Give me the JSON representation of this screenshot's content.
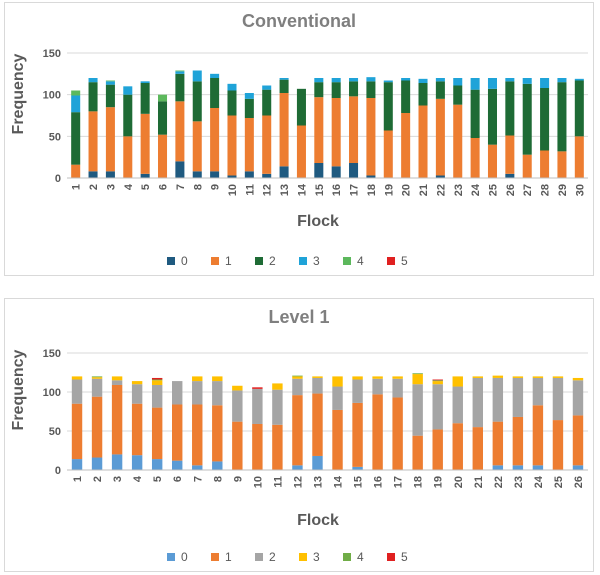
{
  "chart_data": [
    {
      "type": "bar",
      "stacked": true,
      "title": "Conventional",
      "xlabel": "Flock",
      "ylabel": "Frequency",
      "ylim": [
        0,
        150
      ],
      "yticks": [
        0,
        50,
        100,
        150
      ],
      "grid": true,
      "legend_position": "bottom",
      "categories": [
        "1",
        "2",
        "3",
        "4",
        "5",
        "6",
        "7",
        "8",
        "9",
        "10",
        "11",
        "12",
        "13",
        "14",
        "15",
        "16",
        "17",
        "18",
        "19",
        "20",
        "21",
        "22",
        "23",
        "24",
        "25",
        "26",
        "27",
        "28",
        "29",
        "30"
      ],
      "series": [
        {
          "name": "0",
          "color": "#1f5a80",
          "values": [
            0,
            8,
            8,
            0,
            5,
            0,
            20,
            8,
            8,
            3,
            8,
            5,
            14,
            0,
            18,
            14,
            18,
            3,
            0,
            0,
            0,
            3,
            0,
            0,
            0,
            5,
            0,
            0,
            0,
            0
          ]
        },
        {
          "name": "1",
          "color": "#ed7d31",
          "values": [
            16,
            72,
            77,
            50,
            72,
            52,
            72,
            60,
            76,
            72,
            64,
            70,
            88,
            63,
            79,
            82,
            80,
            93,
            57,
            78,
            87,
            92,
            88,
            48,
            40,
            46,
            28,
            33,
            32,
            50
          ]
        },
        {
          "name": "2",
          "color": "#1e6b35",
          "values": [
            63,
            35,
            27,
            50,
            37,
            40,
            33,
            48,
            36,
            30,
            23,
            31,
            16,
            44,
            18,
            19,
            18,
            20,
            58,
            39,
            27,
            21,
            23,
            58,
            67,
            65,
            85,
            75,
            83,
            67
          ]
        },
        {
          "name": "3",
          "color": "#1fa3d8",
          "values": [
            20,
            5,
            4,
            10,
            2,
            0,
            3,
            13,
            5,
            8,
            7,
            5,
            2,
            0,
            5,
            5,
            4,
            5,
            2,
            3,
            5,
            4,
            9,
            14,
            13,
            4,
            7,
            12,
            5,
            2
          ]
        },
        {
          "name": "4",
          "color": "#5cb85c",
          "values": [
            6,
            0,
            1,
            0,
            0,
            8,
            1,
            0,
            0,
            0,
            0,
            0,
            0,
            0,
            0,
            0,
            0,
            0,
            0,
            0,
            0,
            0,
            0,
            0,
            0,
            0,
            0,
            0,
            0,
            0
          ]
        },
        {
          "name": "5",
          "color": "#e02020",
          "values": [
            0,
            0,
            0,
            0,
            0,
            0,
            0,
            0,
            0,
            0,
            0,
            0,
            0,
            0,
            0,
            0,
            0,
            0,
            0,
            0,
            0,
            0,
            0,
            0,
            0,
            0,
            0,
            0,
            0,
            0
          ]
        }
      ]
    },
    {
      "type": "bar",
      "stacked": true,
      "title": "Level 1",
      "xlabel": "Flock",
      "ylabel": "Frequency",
      "ylim": [
        0,
        150
      ],
      "yticks": [
        0,
        50,
        100,
        150
      ],
      "grid": true,
      "legend_position": "bottom",
      "categories": [
        "1",
        "2",
        "3",
        "4",
        "5",
        "6",
        "7",
        "8",
        "9",
        "10",
        "11",
        "12",
        "13",
        "14",
        "15",
        "16",
        "17",
        "18",
        "19",
        "20",
        "21",
        "22",
        "23",
        "24",
        "25",
        "26"
      ],
      "series": [
        {
          "name": "0",
          "color": "#5b9bd5",
          "values": [
            14,
            16,
            20,
            19,
            14,
            12,
            6,
            11,
            0,
            0,
            0,
            6,
            18,
            0,
            4,
            0,
            0,
            0,
            0,
            0,
            0,
            6,
            6,
            6,
            0,
            6
          ]
        },
        {
          "name": "1",
          "color": "#ed7d31",
          "values": [
            71,
            78,
            89,
            66,
            66,
            72,
            78,
            72,
            62,
            59,
            58,
            90,
            80,
            77,
            82,
            97,
            93,
            44,
            52,
            60,
            55,
            56,
            62,
            77,
            64,
            64
          ]
        },
        {
          "name": "2",
          "color": "#a5a5a5",
          "values": [
            31,
            23,
            6,
            25,
            29,
            30,
            30,
            31,
            40,
            45,
            45,
            21,
            20,
            30,
            30,
            20,
            24,
            66,
            58,
            47,
            63,
            56,
            50,
            35,
            54,
            45
          ]
        },
        {
          "name": "3",
          "color": "#ffc000",
          "values": [
            4,
            2,
            5,
            4,
            6,
            0,
            6,
            6,
            6,
            0,
            8,
            3,
            2,
            13,
            4,
            3,
            3,
            13,
            4,
            13,
            2,
            3,
            2,
            2,
            2,
            3
          ]
        },
        {
          "name": "4",
          "color": "#70ad47",
          "values": [
            0,
            1,
            0,
            0,
            1,
            0,
            0,
            0,
            0,
            0,
            0,
            1,
            0,
            0,
            0,
            0,
            0,
            1,
            1,
            0,
            0,
            0,
            0,
            0,
            0,
            0
          ]
        },
        {
          "name": "5",
          "color": "#e02020",
          "values": [
            0,
            0,
            0,
            0,
            2,
            0,
            0,
            0,
            0,
            2,
            0,
            0,
            0,
            0,
            0,
            0,
            0,
            0,
            1,
            0,
            0,
            0,
            0,
            0,
            0,
            0
          ]
        }
      ]
    }
  ]
}
